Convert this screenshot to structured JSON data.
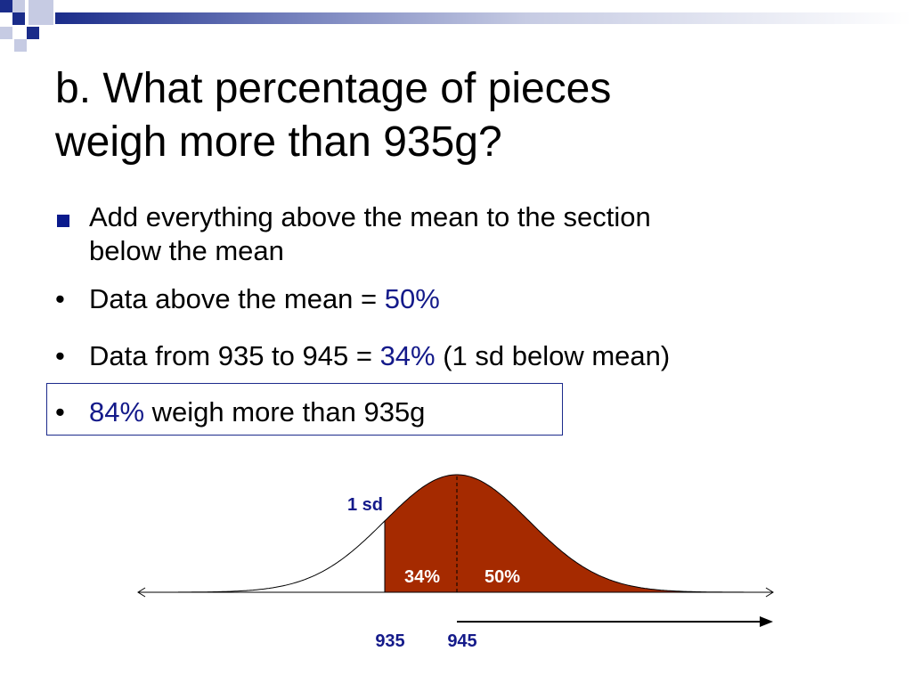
{
  "slide": {
    "title_line1": "b. What percentage of pieces",
    "title_line2": "weigh more than 935g?",
    "bullet_main_line1": "Add everything above the mean to the section",
    "bullet_main_line2": "below the mean",
    "bullet1_text": "Data above the mean = ",
    "bullet1_value": "50%",
    "bullet2_text": "Data from 935 to 945 = ",
    "bullet2_value": "34%",
    "bullet2_note": " (1 sd below mean)",
    "bullet3_value": "84%",
    "bullet3_text": " weigh more than 935g",
    "dot": "•"
  },
  "diagram": {
    "sd_label": "1 sd",
    "left_area_label": "34%",
    "right_area_label": "50%",
    "tick_935": "935",
    "tick_945": "945",
    "fill_color": "#a52a00",
    "label_color": "#141a8a"
  },
  "colors": {
    "accent_blue": "#141a8a",
    "bar_navy": "#1a2c8a"
  }
}
